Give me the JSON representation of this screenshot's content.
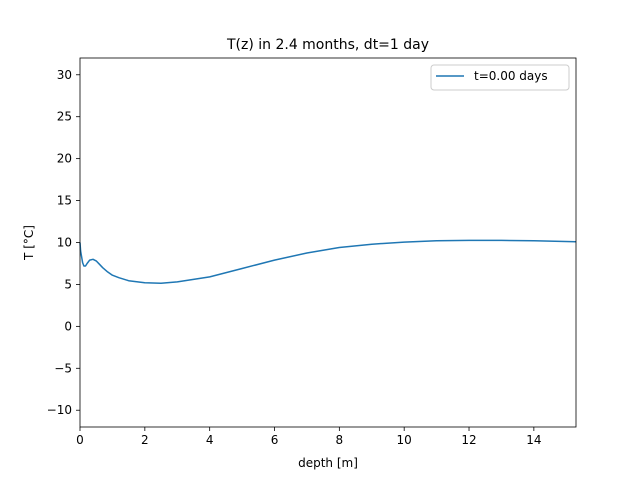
{
  "chart_data": {
    "type": "line",
    "title": "T(z) in 2.4 months, dt=1 day",
    "xlabel": "depth [m]",
    "ylabel": "T [°C]",
    "xlim": [
      0,
      15.3
    ],
    "ylim": [
      -12,
      32
    ],
    "xticks": [
      0,
      2,
      4,
      6,
      8,
      10,
      12,
      14
    ],
    "yticks": [
      -10,
      -5,
      0,
      5,
      10,
      15,
      20,
      25,
      30
    ],
    "grid": false,
    "legend": "top-right",
    "series": [
      {
        "name": "t=0.00 days",
        "color": "#1f77b4",
        "x": [
          0,
          0.02,
          0.05,
          0.08,
          0.12,
          0.17,
          0.22,
          0.3,
          0.4,
          0.5,
          0.6,
          0.7,
          0.85,
          1.0,
          1.2,
          1.5,
          2.0,
          2.5,
          3.0,
          4.0,
          5.0,
          6.0,
          7.0,
          8.0,
          9.0,
          10.0,
          11.0,
          12.0,
          13.0,
          14.0,
          15.3
        ],
        "y": [
          10.0,
          9.0,
          8.3,
          7.6,
          7.2,
          7.2,
          7.5,
          7.9,
          8.0,
          7.8,
          7.4,
          7.0,
          6.5,
          6.1,
          5.8,
          5.45,
          5.2,
          5.15,
          5.3,
          5.9,
          6.9,
          7.9,
          8.75,
          9.4,
          9.8,
          10.05,
          10.2,
          10.25,
          10.25,
          10.2,
          10.1
        ]
      }
    ]
  }
}
